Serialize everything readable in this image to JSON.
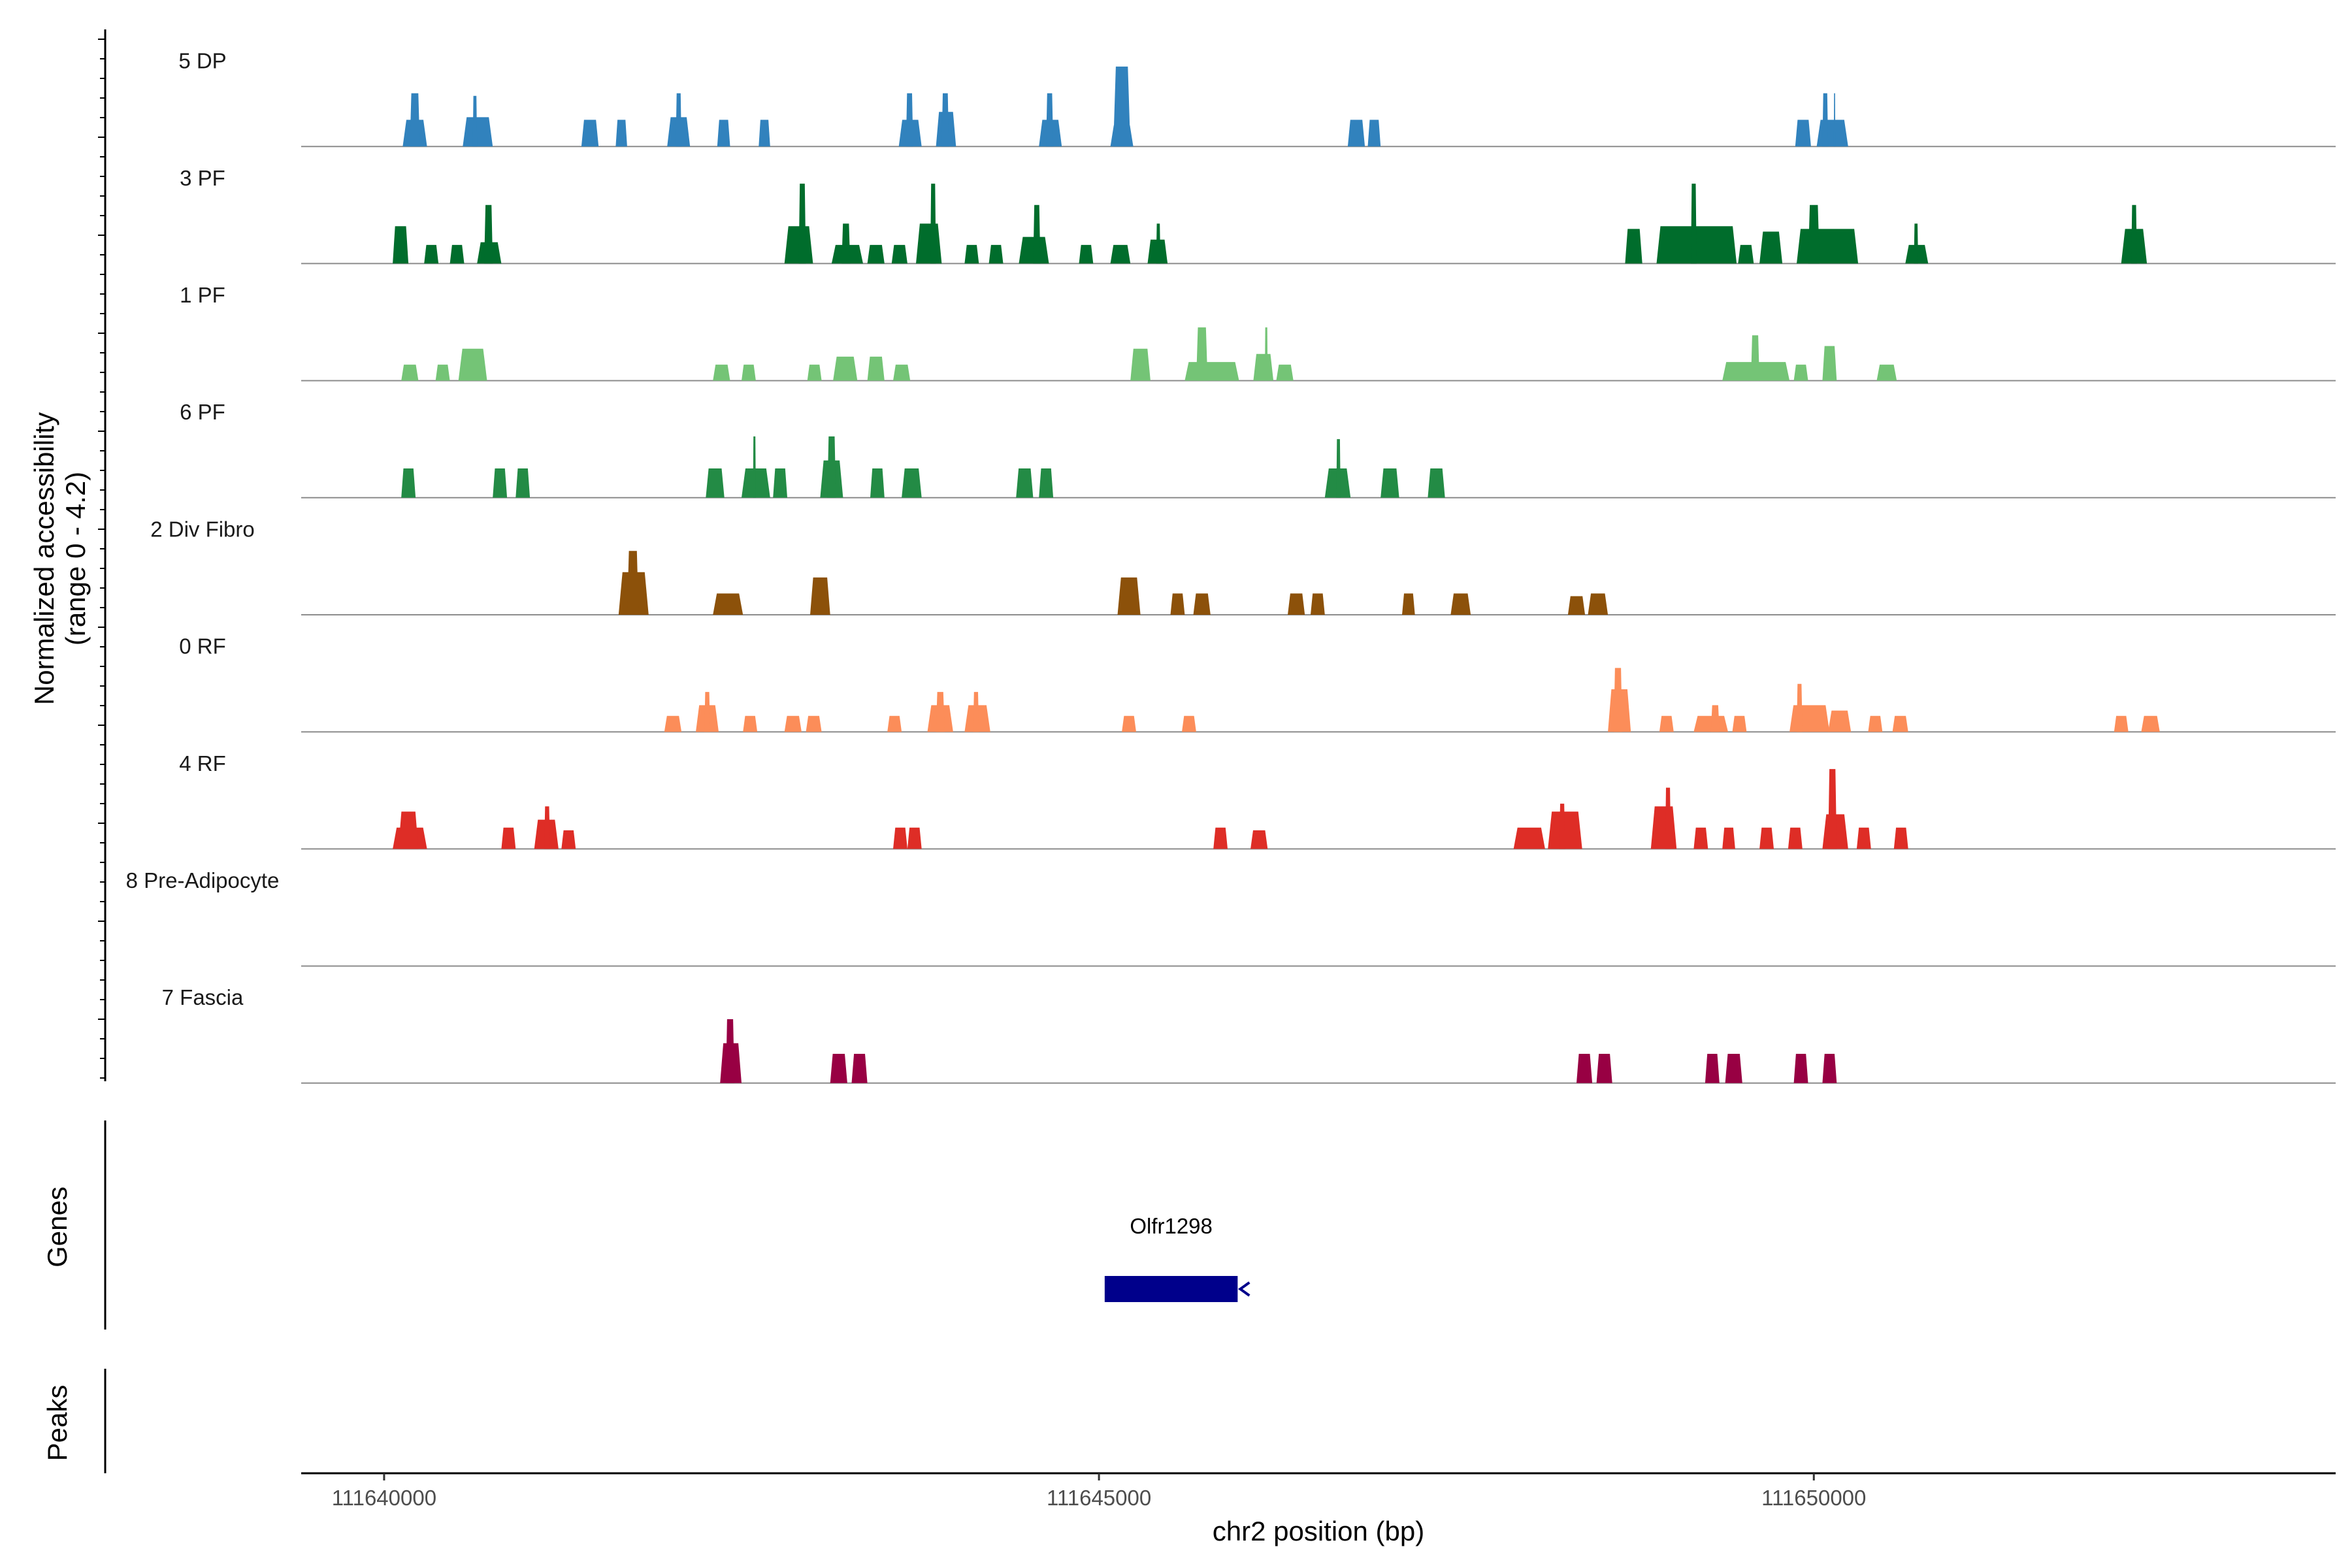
{
  "chart_data": {
    "type": "coverage-track",
    "xlabel": "chr2 position (bp)",
    "ylabel_line1": "Normalized accessibility",
    "ylabel_line2": "(range 0 - 4.2)",
    "xlim": [
      111639420,
      111653650
    ],
    "xticks": [
      111640000,
      111645000,
      111650000
    ],
    "xtick_labels": [
      "111640000",
      "111645000",
      "111650000"
    ],
    "ylim": [
      0,
      4.2
    ],
    "tracks": [
      {
        "name": "5 DP",
        "color": "#3182bd",
        "peaks": [
          [
            111640130,
            111640300,
            1.0
          ],
          [
            111640180,
            111640250,
            2.0
          ],
          [
            111640550,
            111640760,
            1.1
          ],
          [
            111640620,
            111640650,
            1.9
          ],
          [
            111641380,
            111641500,
            1.0
          ],
          [
            111641620,
            111641700,
            1.0
          ],
          [
            111641980,
            111642140,
            1.1
          ],
          [
            111642040,
            111642080,
            2.0
          ],
          [
            111642330,
            111642420,
            1.0
          ],
          [
            111642620,
            111642700,
            1.0
          ],
          [
            111643600,
            111643760,
            1.0
          ],
          [
            111643650,
            111643700,
            2.0
          ],
          [
            111643860,
            111644000,
            1.3
          ],
          [
            111643900,
            111643950,
            2.0
          ],
          [
            111644580,
            111644740,
            1.0
          ],
          [
            111644630,
            111644680,
            2.0
          ],
          [
            111645080,
            111645240,
            0.8
          ],
          [
            111645100,
            111645220,
            3.0
          ],
          [
            111646740,
            111646860,
            1.0
          ],
          [
            111646880,
            111646970,
            1.0
          ],
          [
            111649870,
            111649980,
            1.0
          ],
          [
            111650020,
            111650240,
            1.0
          ],
          [
            111650060,
            111650100,
            2.0
          ],
          [
            111650140,
            111650150,
            2.0
          ]
        ]
      },
      {
        "name": "3 PF",
        "color": "#006d2c",
        "peaks": [
          [
            111640060,
            111640170,
            1.4
          ],
          [
            111640280,
            111640380,
            0.7
          ],
          [
            111640460,
            111640560,
            0.7
          ],
          [
            111640650,
            111640820,
            0.8
          ],
          [
            111640700,
            111640760,
            2.2
          ],
          [
            111642800,
            111643000,
            1.4
          ],
          [
            111642900,
            111642950,
            3.0
          ],
          [
            111643130,
            111643350,
            0.7
          ],
          [
            111643200,
            111643260,
            1.5
          ],
          [
            111643380,
            111643500,
            0.7
          ],
          [
            111643550,
            111643660,
            0.7
          ],
          [
            111643720,
            111643900,
            1.5
          ],
          [
            111643820,
            111643860,
            3.0
          ],
          [
            111644060,
            111644160,
            0.7
          ],
          [
            111644230,
            111644330,
            0.7
          ],
          [
            111644440,
            111644650,
            1.0
          ],
          [
            111644540,
            111644590,
            2.2
          ],
          [
            111644860,
            111644960,
            0.7
          ],
          [
            111645080,
            111645220,
            0.7
          ],
          [
            111645340,
            111645480,
            0.9
          ],
          [
            111645400,
            111645430,
            1.5
          ],
          [
            111648680,
            111648800,
            1.3
          ],
          [
            111648900,
            111649460,
            1.4
          ],
          [
            111649140,
            111649180,
            3.0
          ],
          [
            111649470,
            111649580,
            0.7
          ],
          [
            111649620,
            111649780,
            1.2
          ],
          [
            111649880,
            111650310,
            1.3
          ],
          [
            111649960,
            111650040,
            2.2
          ],
          [
            111650640,
            111650800,
            0.7
          ],
          [
            111650700,
            111650730,
            1.5
          ],
          [
            111652150,
            111652330,
            1.3
          ],
          [
            111652220,
            111652260,
            2.2
          ]
        ]
      },
      {
        "name": "1 PF",
        "color": "#74c476",
        "peaks": [
          [
            111640120,
            111640240,
            0.6
          ],
          [
            111640360,
            111640460,
            0.6
          ],
          [
            111640520,
            111640720,
            1.2
          ],
          [
            111642300,
            111642420,
            0.6
          ],
          [
            111642500,
            111642600,
            0.6
          ],
          [
            111642960,
            111643060,
            0.6
          ],
          [
            111643140,
            111643310,
            0.9
          ],
          [
            111643380,
            111643500,
            0.9
          ],
          [
            111643560,
            111643680,
            0.6
          ],
          [
            111645220,
            111645360,
            1.2
          ],
          [
            111645600,
            111645980,
            0.7
          ],
          [
            111645680,
            111645760,
            2.0
          ],
          [
            111646080,
            111646220,
            1.0
          ],
          [
            111646160,
            111646180,
            2.0
          ],
          [
            111646240,
            111646360,
            0.6
          ],
          [
            111649360,
            111649830,
            0.7
          ],
          [
            111649560,
            111649620,
            1.7
          ],
          [
            111649860,
            111649960,
            0.6
          ],
          [
            111650060,
            111650160,
            1.3
          ],
          [
            111650440,
            111650580,
            0.6
          ]
        ]
      },
      {
        "name": "6 PF",
        "color": "#238b45",
        "peaks": [
          [
            111640120,
            111640220,
            1.1
          ],
          [
            111640760,
            111640860,
            1.1
          ],
          [
            111640920,
            111641020,
            1.1
          ],
          [
            111642250,
            111642380,
            1.1
          ],
          [
            111642500,
            111642700,
            1.1
          ],
          [
            111642580,
            111642600,
            2.3
          ],
          [
            111642720,
            111642820,
            1.1
          ],
          [
            111643050,
            111643210,
            1.4
          ],
          [
            111643100,
            111643160,
            2.3
          ],
          [
            111643400,
            111643500,
            1.1
          ],
          [
            111643620,
            111643760,
            1.1
          ],
          [
            111644420,
            111644540,
            1.1
          ],
          [
            111644580,
            111644680,
            1.1
          ],
          [
            111646580,
            111646760,
            1.1
          ],
          [
            111646660,
            111646690,
            2.2
          ],
          [
            111646970,
            111647100,
            1.1
          ],
          [
            111647300,
            111647420,
            1.1
          ]
        ]
      },
      {
        "name": "2 Div Fibro",
        "color": "#8c510a",
        "peaks": [
          [
            111641640,
            111641850,
            1.6
          ],
          [
            111641700,
            111641780,
            2.4
          ],
          [
            111642300,
            111642510,
            0.8
          ],
          [
            111642980,
            111643120,
            1.4
          ],
          [
            111645130,
            111645290,
            1.4
          ],
          [
            111645500,
            111645600,
            0.8
          ],
          [
            111645660,
            111645780,
            0.8
          ],
          [
            111646320,
            111646440,
            0.8
          ],
          [
            111646480,
            111646580,
            0.8
          ],
          [
            111647120,
            111647210,
            0.8
          ],
          [
            111647460,
            111647600,
            0.8
          ],
          [
            111648280,
            111648400,
            0.7
          ],
          [
            111648420,
            111648560,
            0.8
          ]
        ]
      },
      {
        "name": "0 RF",
        "color": "#fc8d59",
        "peaks": [
          [
            111641960,
            111642080,
            0.6
          ],
          [
            111642180,
            111642340,
            1.0
          ],
          [
            111642240,
            111642280,
            1.5
          ],
          [
            111642510,
            111642610,
            0.6
          ],
          [
            111642800,
            111642920,
            0.6
          ],
          [
            111642950,
            111643060,
            0.6
          ],
          [
            111643520,
            111643620,
            0.6
          ],
          [
            111643800,
            111643980,
            1.0
          ],
          [
            111643860,
            111643920,
            1.5
          ],
          [
            111644060,
            111644240,
            1.0
          ],
          [
            111644120,
            111644160,
            1.5
          ],
          [
            111645160,
            111645260,
            0.6
          ],
          [
            111645580,
            111645680,
            0.6
          ],
          [
            111648560,
            111648720,
            1.6
          ],
          [
            111648600,
            111648660,
            2.4
          ],
          [
            111648920,
            111649020,
            0.6
          ],
          [
            111649160,
            111649400,
            0.6
          ],
          [
            111649280,
            111649340,
            1.0
          ],
          [
            111649430,
            111649530,
            0.6
          ],
          [
            111649830,
            111650110,
            1.0
          ],
          [
            111649880,
            111649920,
            1.8
          ],
          [
            111650100,
            111650260,
            0.8
          ],
          [
            111650380,
            111650480,
            0.6
          ],
          [
            111650550,
            111650660,
            0.6
          ],
          [
            111652100,
            111652200,
            0.6
          ],
          [
            111652290,
            111652420,
            0.6
          ]
        ]
      },
      {
        "name": "4 RF",
        "color": "#de2d26",
        "peaks": [
          [
            111640060,
            111640300,
            0.8
          ],
          [
            111640100,
            111640240,
            1.4
          ],
          [
            111640820,
            111640920,
            0.8
          ],
          [
            111641050,
            111641220,
            1.1
          ],
          [
            111641120,
            111641160,
            1.6
          ],
          [
            111641240,
            111641340,
            0.7
          ],
          [
            111643560,
            111643660,
            0.8
          ],
          [
            111643660,
            111643760,
            0.8
          ],
          [
            111645800,
            111645900,
            0.8
          ],
          [
            111646060,
            111646180,
            0.7
          ],
          [
            111647900,
            111648120,
            0.8
          ],
          [
            111648140,
            111648380,
            1.4
          ],
          [
            111648220,
            111648260,
            1.7
          ],
          [
            111648860,
            111649040,
            1.6
          ],
          [
            111648960,
            111649000,
            2.3
          ],
          [
            111649160,
            111649260,
            0.8
          ],
          [
            111649360,
            111649450,
            0.8
          ],
          [
            111649620,
            111649720,
            0.8
          ],
          [
            111649820,
            111649920,
            0.8
          ],
          [
            111650060,
            111650240,
            1.3
          ],
          [
            111650100,
            111650160,
            3.0
          ],
          [
            111650300,
            111650400,
            0.8
          ],
          [
            111650560,
            111650660,
            0.8
          ]
        ]
      },
      {
        "name": "8 Pre-Adipocyte",
        "color": "#6a51a3",
        "peaks": []
      },
      {
        "name": "7 Fascia",
        "color": "#980043",
        "peaks": [
          [
            111642350,
            111642500,
            1.5
          ],
          [
            111642390,
            111642450,
            2.4
          ],
          [
            111643120,
            111643240,
            1.1
          ],
          [
            111643270,
            111643380,
            1.1
          ],
          [
            111648340,
            111648450,
            1.1
          ],
          [
            111648480,
            111648590,
            1.1
          ],
          [
            111649240,
            111649340,
            1.1
          ],
          [
            111649380,
            111649500,
            1.1
          ],
          [
            111649860,
            111649960,
            1.1
          ],
          [
            111650060,
            111650160,
            1.1
          ]
        ]
      }
    ],
    "genes_label": "Genes",
    "peaks_label": "Peaks",
    "genes": [
      {
        "name": "Olfr1298",
        "start": 111645040,
        "end": 111645970,
        "strand": "-",
        "color": "#00008b"
      }
    ]
  }
}
